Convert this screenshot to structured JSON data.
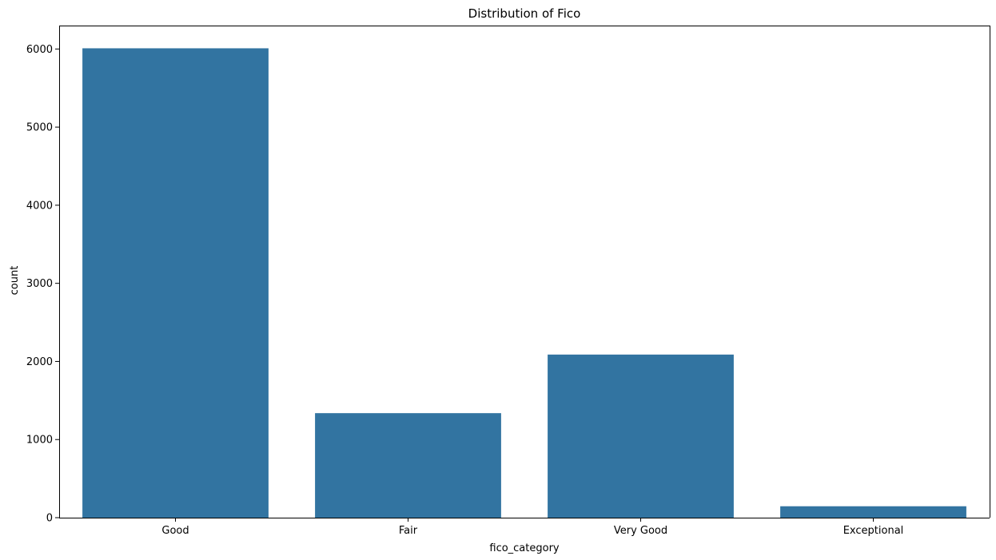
{
  "chart_data": {
    "type": "bar",
    "title": "Distribution of Fico",
    "xlabel": "fico_category",
    "ylabel": "count",
    "categories": [
      "Good",
      "Fair",
      "Very Good",
      "Exceptional"
    ],
    "values": [
      6009,
      1338,
      2088,
      146
    ],
    "ylim": [
      0,
      6300
    ],
    "yticks": [
      0,
      1000,
      2000,
      3000,
      4000,
      5000,
      6000
    ],
    "bar_color": "#3274a1",
    "grid": false,
    "legend": "none"
  }
}
